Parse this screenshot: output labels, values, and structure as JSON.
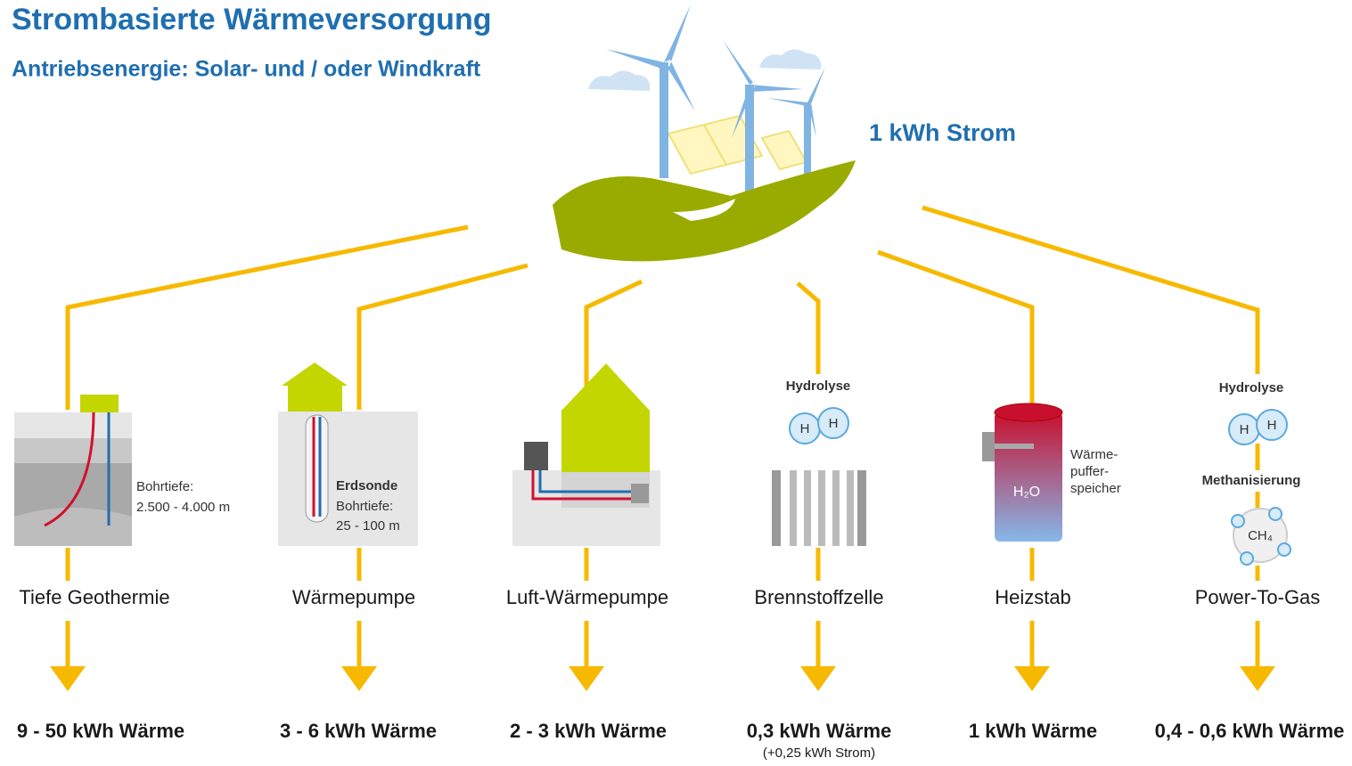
{
  "header": {
    "title": "Strombasierte Wärmeversorgung",
    "subtitle": "Antriebsenergie: Solar- und / oder Windkraft"
  },
  "source": "1 kWh Strom",
  "branches": [
    {
      "name": "Tiefe Geothermie",
      "labels": [
        "Bohrtiefe:",
        "2.500 - 4.000 m"
      ],
      "output": "9 - 50 kWh Wärme"
    },
    {
      "name": "Wärmepumpe",
      "labels": [
        "Erdsonde",
        "Bohrtiefe:",
        "25 - 100 m"
      ],
      "output": "3 - 6 kWh Wärme"
    },
    {
      "name": "Luft-Wärmepumpe",
      "output": "2 - 3 kWh Wärme"
    },
    {
      "name": "Brennstoffzelle",
      "labels": [
        "Hydrolyse",
        "H",
        "H"
      ],
      "output": "0,3 kWh Wärme",
      "note": "(+0,25 kWh Strom)"
    },
    {
      "name": "Heizstab",
      "labels": [
        "H₂O",
        "Wärme-",
        "puffer-",
        "speicher"
      ],
      "output": "1 kWh Wärme"
    },
    {
      "name": "Power-To-Gas",
      "labels": [
        "Hydrolyse",
        "H",
        "H",
        "Methanisierung",
        "CH₄"
      ],
      "output": "0,4 - 0,6 kWh Wärme"
    }
  ]
}
